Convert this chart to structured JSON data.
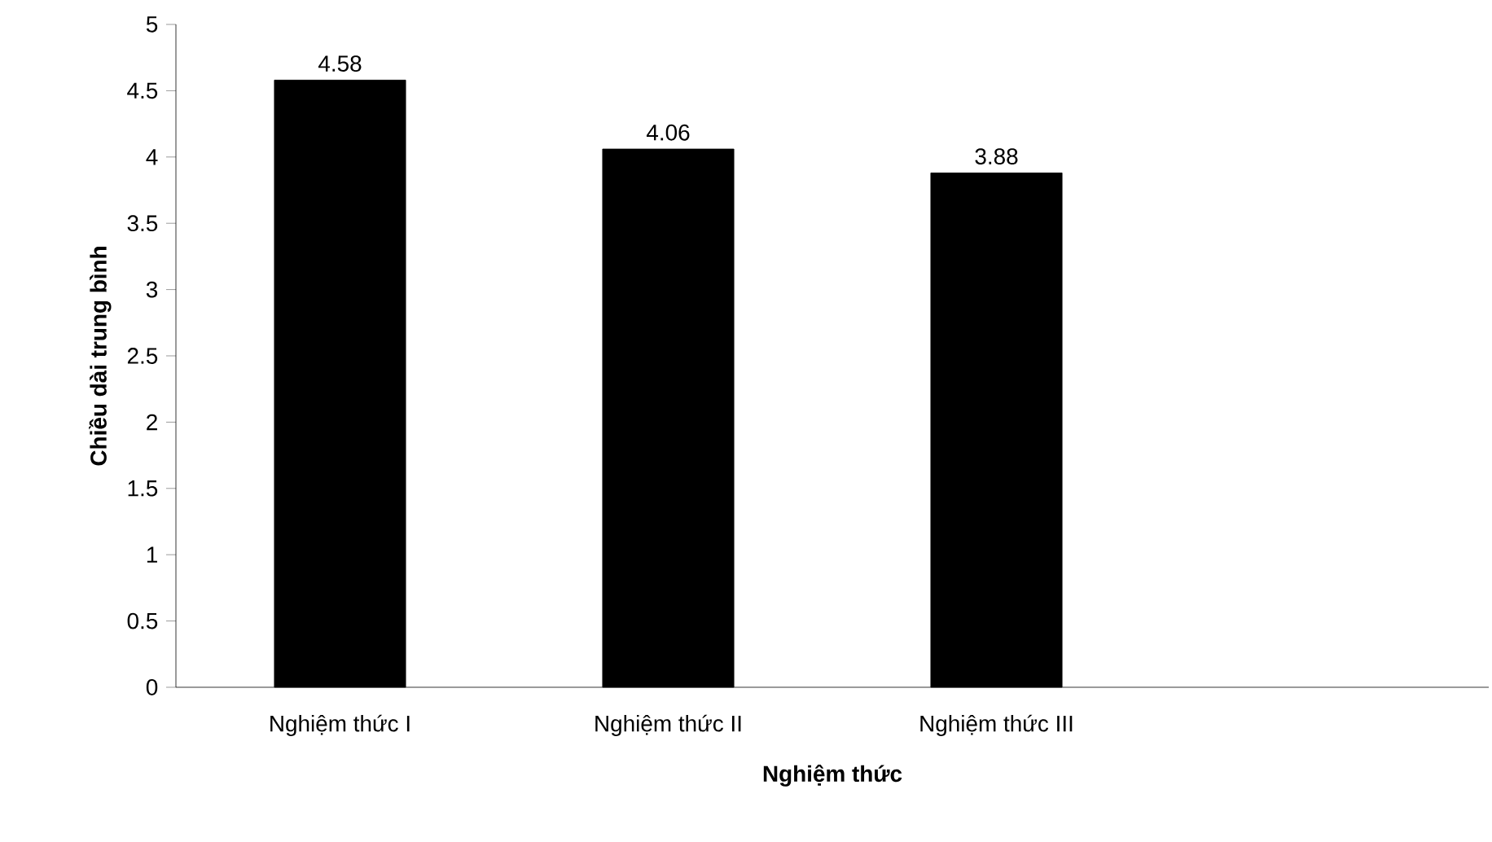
{
  "chart_data": {
    "type": "bar",
    "xlabel": "Nghiệm thức",
    "ylabel": "Chiều dài trung bình",
    "categories": [
      "Nghiệm thức I",
      "Nghiệm thức II",
      "Nghiệm thức III",
      null
    ],
    "values": [
      4.58,
      4.06,
      3.88,
      null
    ],
    "color": "#000000",
    "ylim": [
      0,
      5
    ],
    "yticks": [
      0,
      0.5,
      1,
      1.5,
      2,
      2.5,
      3,
      3.5,
      4,
      4.5,
      5
    ],
    "data_labels": true
  }
}
